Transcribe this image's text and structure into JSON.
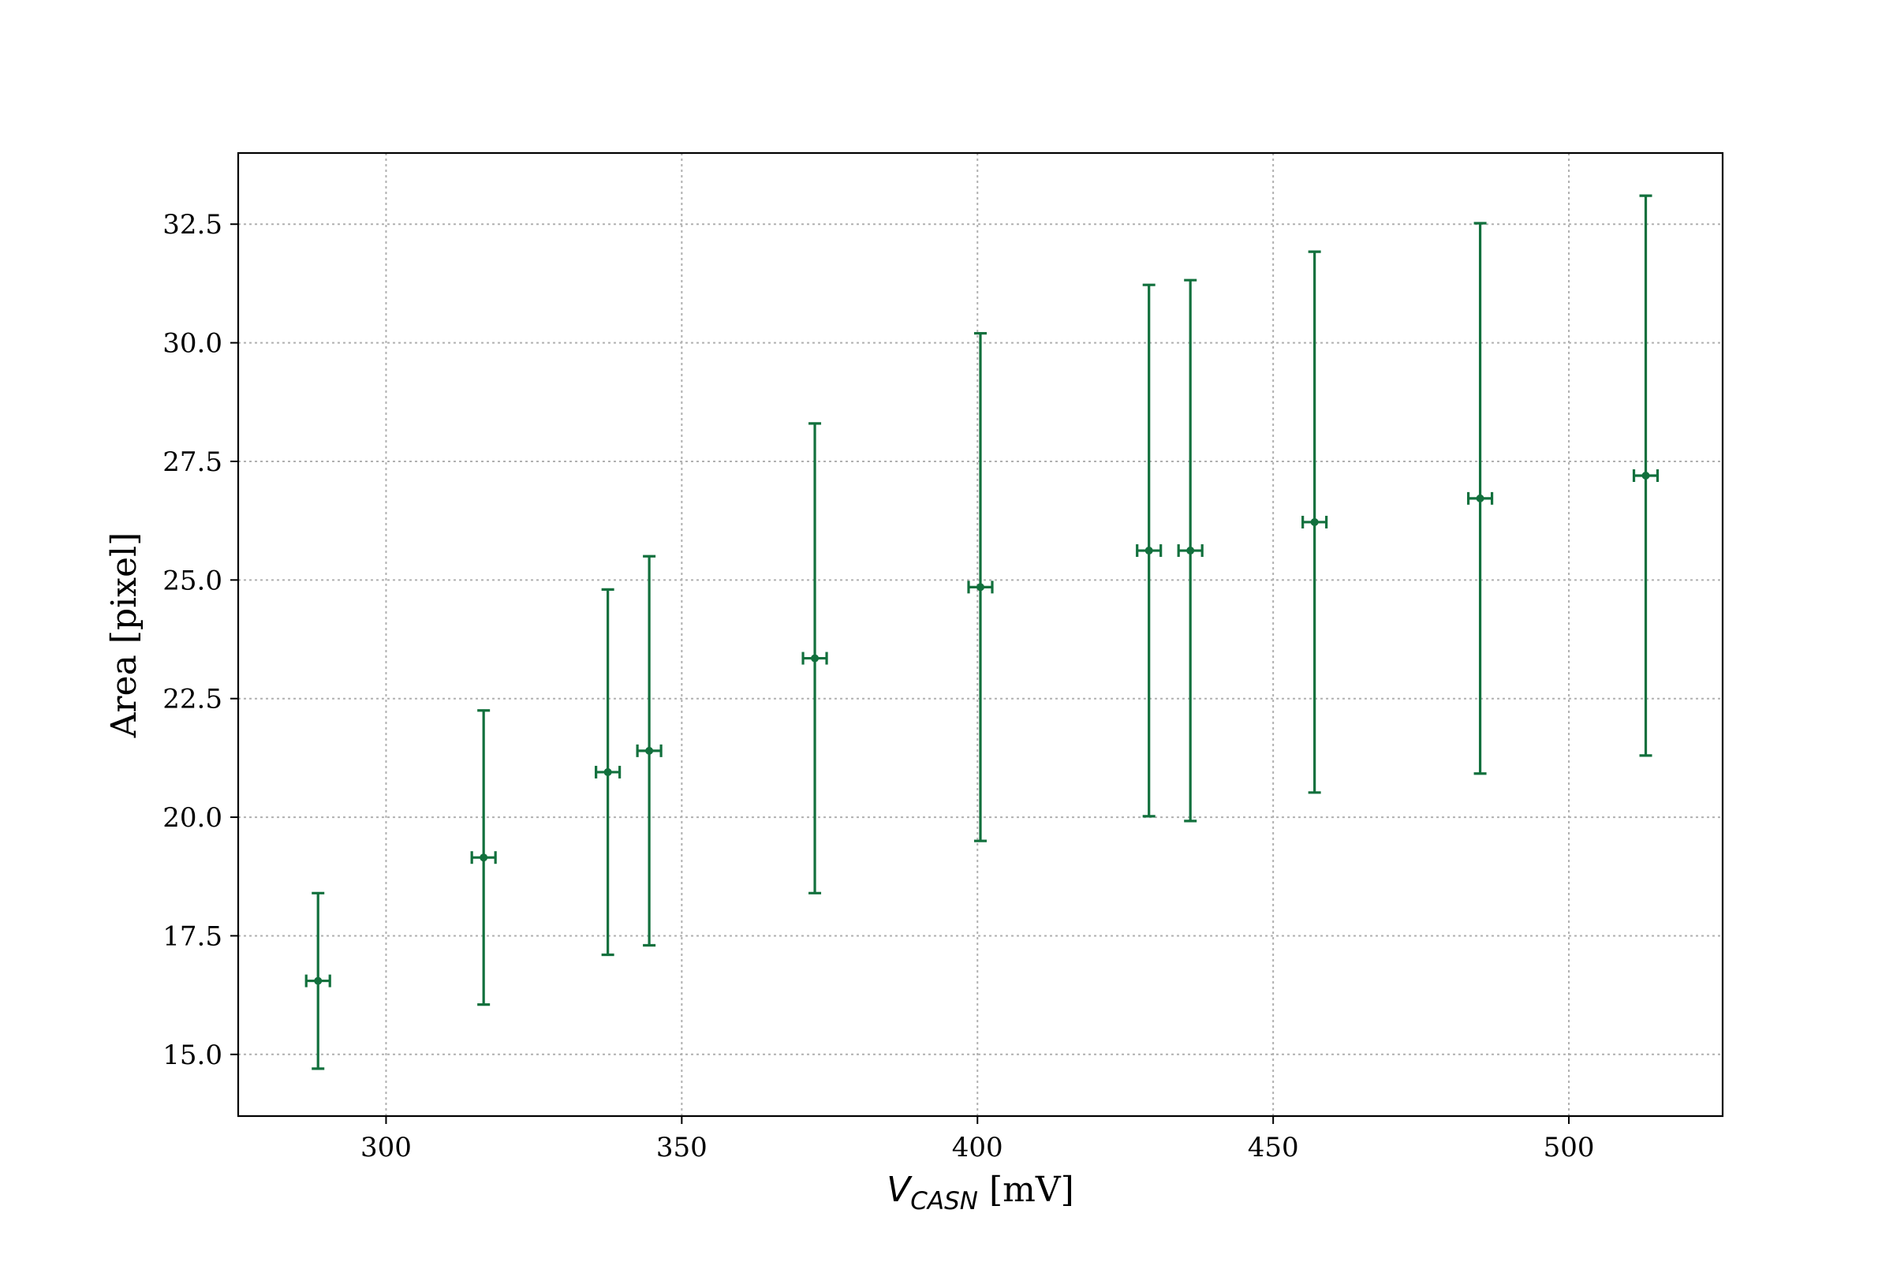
{
  "chart_data": {
    "type": "scatter",
    "title": "",
    "xlabel_main": "V",
    "xlabel_sub": "CASN",
    "xlabel_unit": " [mV]",
    "ylabel": "Area [pixel]",
    "xlim": [
      275,
      526
    ],
    "ylim": [
      13.7,
      34.0
    ],
    "xticks": [
      300,
      350,
      400,
      450,
      500
    ],
    "xtick_labels": [
      "300",
      "350",
      "400",
      "450",
      "500"
    ],
    "yticks": [
      15.0,
      17.5,
      20.0,
      22.5,
      25.0,
      27.5,
      30.0,
      32.5
    ],
    "ytick_labels": [
      "15.0",
      "17.5",
      "20.0",
      "22.5",
      "25.0",
      "27.5",
      "30.0",
      "32.5"
    ],
    "grid": true,
    "color": "#12703d",
    "series": [
      {
        "points": [
          {
            "x": 288.5,
            "y": 16.55,
            "xerr": 2.0,
            "yerr": 1.85
          },
          {
            "x": 316.5,
            "y": 19.15,
            "xerr": 2.0,
            "yerr": 3.1
          },
          {
            "x": 337.5,
            "y": 20.95,
            "xerr": 2.0,
            "yerr": 3.85
          },
          {
            "x": 344.5,
            "y": 21.4,
            "xerr": 2.0,
            "yerr": 4.1
          },
          {
            "x": 372.5,
            "y": 23.35,
            "xerr": 2.0,
            "yerr": 4.95
          },
          {
            "x": 400.5,
            "y": 24.85,
            "xerr": 2.0,
            "yerr": 5.35
          },
          {
            "x": 429.0,
            "y": 25.62,
            "xerr": 2.0,
            "yerr": 5.6
          },
          {
            "x": 436.0,
            "y": 25.62,
            "xerr": 2.0,
            "yerr": 5.7
          },
          {
            "x": 457.0,
            "y": 26.22,
            "xerr": 2.0,
            "yerr": 5.7
          },
          {
            "x": 485.0,
            "y": 26.72,
            "xerr": 2.0,
            "yerr": 5.8
          },
          {
            "x": 513.0,
            "y": 27.2,
            "xerr": 2.0,
            "yerr": 5.9
          }
        ]
      }
    ]
  }
}
